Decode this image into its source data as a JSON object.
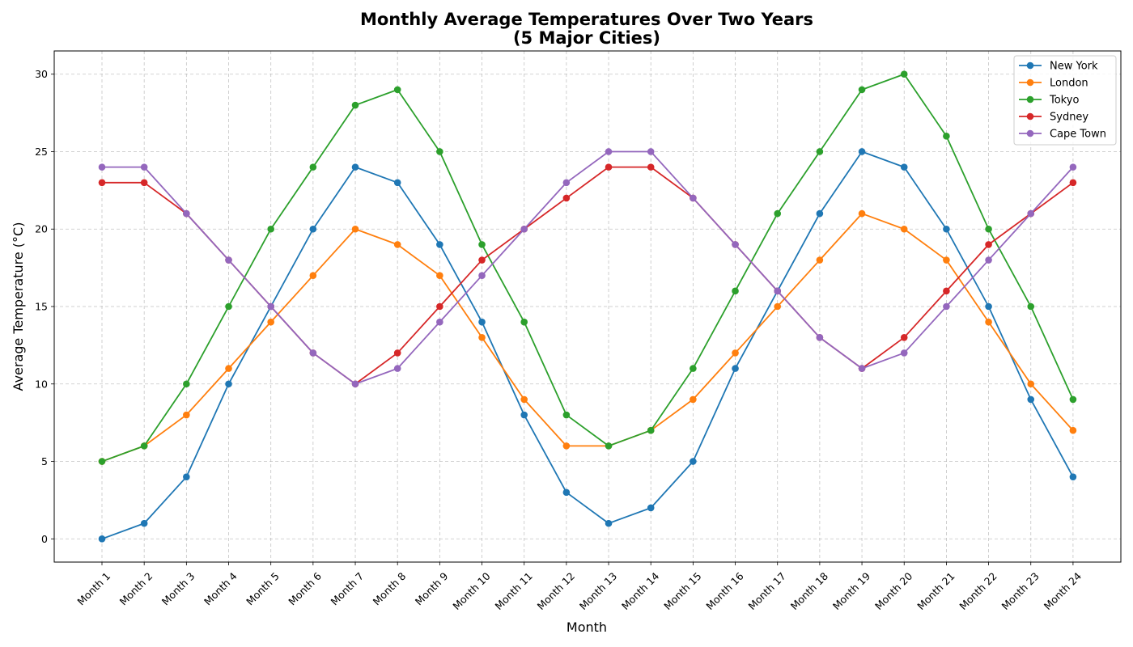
{
  "chart_data": {
    "type": "line",
    "title": "Monthly Average Temperatures Over Two Years",
    "subtitle": "(5 Major Cities)",
    "xlabel": "Month",
    "ylabel": "Average Temperature (°C)",
    "ylim": [
      -1.5,
      31.5
    ],
    "yticks": [
      0,
      5,
      10,
      15,
      20,
      25,
      30
    ],
    "grid": true,
    "legend_position": "top-right",
    "categories": [
      "Month 1",
      "Month 2",
      "Month 3",
      "Month 4",
      "Month 5",
      "Month 6",
      "Month 7",
      "Month 8",
      "Month 9",
      "Month 10",
      "Month 11",
      "Month 12",
      "Month 13",
      "Month 14",
      "Month 15",
      "Month 16",
      "Month 17",
      "Month 18",
      "Month 19",
      "Month 20",
      "Month 21",
      "Month 22",
      "Month 23",
      "Month 24"
    ],
    "series": [
      {
        "name": "New York",
        "color": "#1f77b4",
        "values": [
          0,
          1,
          4,
          10,
          15,
          20,
          24,
          23,
          19,
          14,
          8,
          3,
          1,
          2,
          5,
          11,
          16,
          21,
          25,
          24,
          20,
          15,
          9,
          4
        ]
      },
      {
        "name": "London",
        "color": "#ff7f0e",
        "values": [
          5,
          6,
          8,
          11,
          14,
          17,
          20,
          19,
          17,
          13,
          9,
          6,
          6,
          7,
          9,
          12,
          15,
          18,
          21,
          20,
          18,
          14,
          10,
          7
        ]
      },
      {
        "name": "Tokyo",
        "color": "#2ca02c",
        "values": [
          5,
          6,
          10,
          15,
          20,
          24,
          28,
          29,
          25,
          19,
          14,
          8,
          6,
          7,
          11,
          16,
          21,
          25,
          29,
          30,
          26,
          20,
          15,
          9
        ]
      },
      {
        "name": "Sydney",
        "color": "#d62728",
        "values": [
          23,
          23,
          21,
          18,
          15,
          12,
          10,
          12,
          15,
          18,
          20,
          22,
          24,
          24,
          22,
          19,
          16,
          13,
          11,
          13,
          16,
          19,
          21,
          23
        ]
      },
      {
        "name": "Cape Town",
        "color": "#9467bd",
        "values": [
          24,
          24,
          21,
          18,
          15,
          12,
          10,
          11,
          14,
          17,
          20,
          23,
          25,
          25,
          22,
          19,
          16,
          13,
          11,
          12,
          15,
          18,
          21,
          24
        ]
      }
    ]
  }
}
